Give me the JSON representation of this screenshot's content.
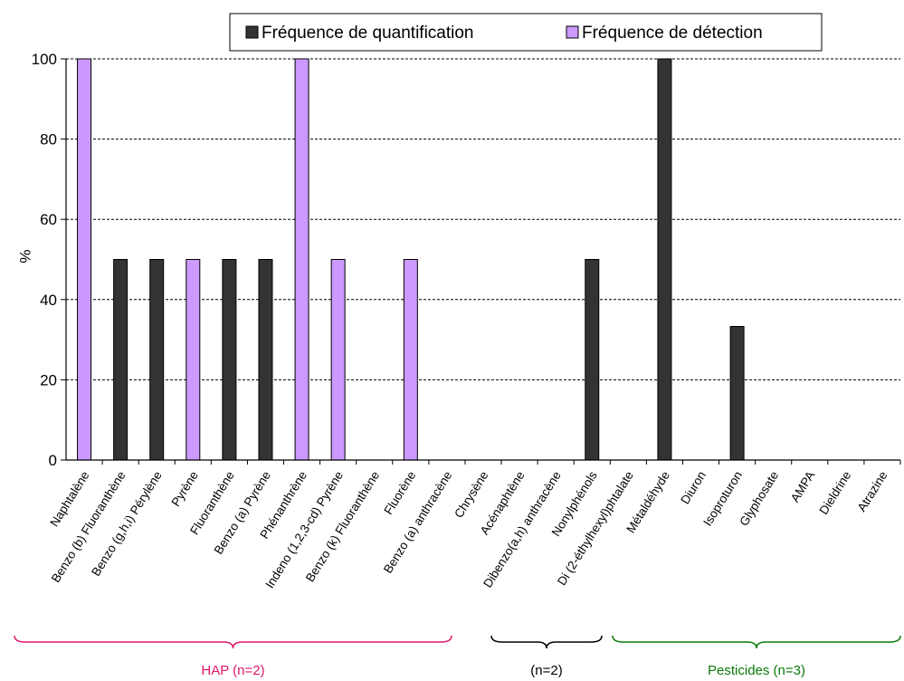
{
  "chart_data": {
    "type": "bar",
    "ylabel": "%",
    "ylim": [
      0,
      100
    ],
    "yticks": [
      0,
      20,
      40,
      60,
      80,
      100
    ],
    "grid": true,
    "legend_position": "top",
    "categories": [
      "Naphtalène",
      "Benzo (b) Fluoranthène",
      "Benzo (g,h,i) Pérylène",
      "Pyrène",
      "Fluoranthène",
      "Benzo (a) Pyrène",
      "Phénanthrène",
      "Indeno (1,2,3-cd) Pyrène",
      "Benzo (k) Fluoranthène",
      "Fluorène",
      "Benzo (a) anthracène",
      "Chrysène",
      "Acénaphtène",
      "Dibenzo(a,h) anthracène",
      "Nonylphénols",
      "Di (2-éthylhexyl)phtalate",
      "Métaldéhyde",
      "Diuron",
      "Isoproturon",
      "Glyphosate",
      "AMPA",
      "Dieldrine",
      "Atrazine"
    ],
    "series": [
      {
        "name": "Fréquence de quantification",
        "color": "#333333",
        "values": [
          0,
          50,
          50,
          0,
          50,
          50,
          0,
          0,
          0,
          0,
          0,
          0,
          0,
          0,
          50,
          0,
          100,
          0,
          33.3,
          0,
          0,
          0,
          0
        ]
      },
      {
        "name": "Fréquence de détection",
        "color": "#cc99ff",
        "values": [
          100,
          0,
          0,
          50,
          0,
          0,
          100,
          50,
          0,
          50,
          0,
          0,
          0,
          0,
          0,
          0,
          0,
          0,
          0,
          0,
          0,
          0,
          0
        ]
      }
    ],
    "groups": [
      {
        "label": "HAP (n=2)",
        "color": "#e0186a"
      },
      {
        "label": "(n=2)",
        "color": "#000000"
      },
      {
        "label": "Pesticides (n=3)",
        "color": "#0a7a0a"
      }
    ]
  }
}
